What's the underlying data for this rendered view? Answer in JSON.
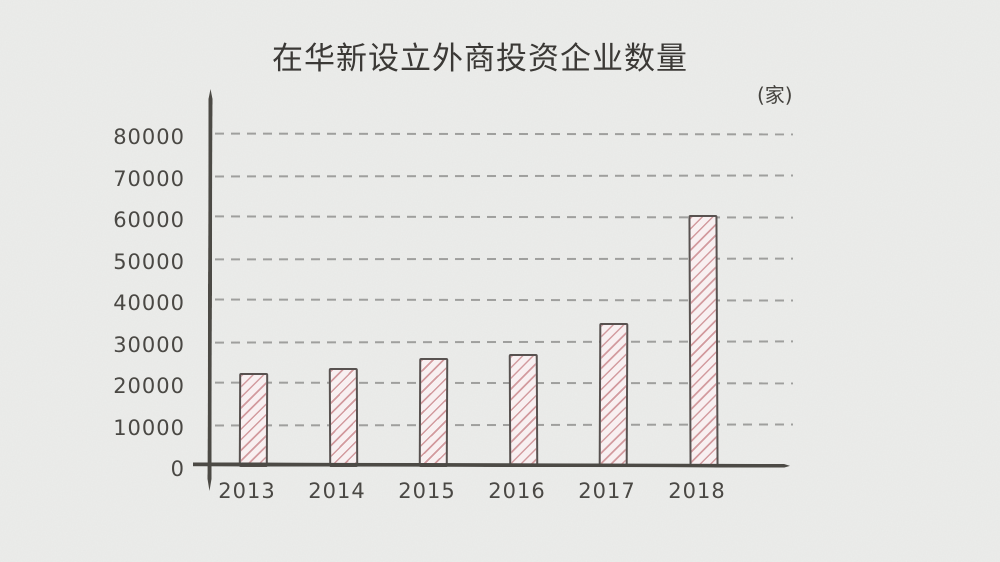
{
  "chart": {
    "title": "在华新设立外商投资企业数量",
    "unit_label": "(家)"
  },
  "chart_data": {
    "type": "bar",
    "title": "在华新设立外商投资企业数量",
    "ylabel_unit": "(家)",
    "categories": [
      "2013",
      "2014",
      "2015",
      "2016",
      "2017",
      "2018"
    ],
    "values": [
      22500,
      23500,
      26000,
      27000,
      34500,
      60500
    ],
    "note": "bar values estimated from dashed gridlines; no data labels shown",
    "ylim": [
      0,
      85000
    ],
    "yticks": [
      0,
      10000,
      20000,
      30000,
      40000,
      50000,
      60000,
      70000,
      80000
    ],
    "grid": "horizontal dashed",
    "legend": "none",
    "style": "hand-drawn sketch on paper",
    "colors": {
      "background": "#ecedeb",
      "axis": "#4c4a45",
      "gridline": "#929290",
      "text": "#45433f",
      "bar_fill": "#f8f0f1",
      "bar_hatch": "#d29a9e",
      "bar_edge": "#585250"
    },
    "bar_hatch_direction": "/"
  }
}
